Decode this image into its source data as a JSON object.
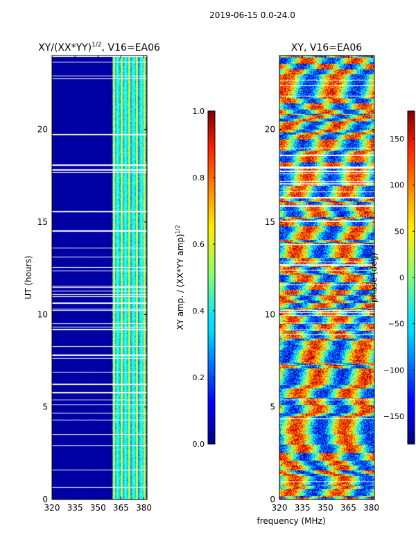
{
  "figure": {
    "suptitle": "2019-06-15 0.0-24.0",
    "shared_xlabel": "frequency (MHz)",
    "colormap": "jet"
  },
  "chart_data": [
    {
      "type": "heatmap",
      "title_main": "XY/(XX*YY)",
      "title_exp": "1/2",
      "title_tail": ", V16=EA06",
      "ylabel": "UT (hours)",
      "xlim": [
        320,
        382
      ],
      "ylim": [
        0,
        24
      ],
      "xticks": [
        320,
        335,
        350,
        365,
        380
      ],
      "yticks": [
        0,
        5,
        10,
        15,
        20
      ],
      "pattern": "amplitude",
      "colorbar": {
        "label_main": "XY amp. / (XX*YY amp)",
        "label_exp": "1/2",
        "range": [
          0.0,
          1.0
        ],
        "ticks": [
          "0.0",
          "0.2",
          "0.4",
          "0.6",
          "0.8",
          "1.0"
        ],
        "tick_values": [
          0.0,
          0.2,
          0.4,
          0.6,
          0.8,
          1.0
        ]
      }
    },
    {
      "type": "heatmap",
      "title_main": "XY, V16=EA06",
      "title_exp": "",
      "title_tail": "",
      "ylabel": "",
      "xlim": [
        320,
        382
      ],
      "ylim": [
        0,
        24
      ],
      "xticks": [
        320,
        335,
        350,
        365,
        380
      ],
      "yticks": [
        0,
        5,
        10,
        15,
        20
      ],
      "pattern": "phase",
      "colorbar": {
        "label_main": "phase (deg)",
        "label_exp": "",
        "range": [
          -180,
          180
        ],
        "ticks": [
          "−150",
          "−100",
          "−50",
          "0",
          "50",
          "100",
          "150"
        ],
        "tick_values": [
          -150,
          -100,
          -50,
          0,
          50,
          100,
          150
        ]
      }
    }
  ]
}
